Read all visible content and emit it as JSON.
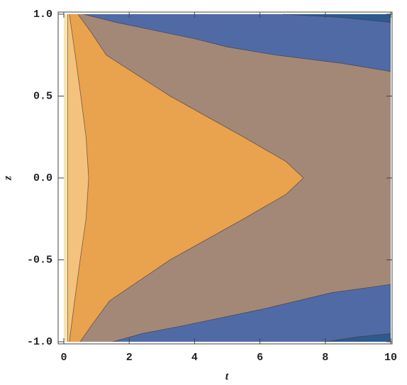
{
  "chart_data": {
    "type": "contour",
    "xlabel": "t",
    "ylabel": "z",
    "xlim": [
      0,
      10
    ],
    "ylim": [
      -1,
      1
    ],
    "xticks": [
      0,
      2,
      4,
      6,
      8,
      10
    ],
    "yticks": [
      {
        "value": -1,
        "label": "-1.0"
      },
      {
        "value": -0.5,
        "label": "-0.5"
      },
      {
        "value": 0,
        "label": "0.0"
      },
      0.5,
      {
        "value": 1,
        "label": "1.0"
      }
    ],
    "base_color": "#f8e3b2",
    "contours": [
      {
        "color": "#f3c27c",
        "x": [
          0.12,
          0.12
        ],
        "y": [
          1,
          -1
        ]
      },
      {
        "color": "#e9a24d",
        "x": [
          0.17,
          0.35,
          0.52,
          0.68,
          0.76,
          0.68,
          0.5,
          0.33,
          0.17
        ],
        "y": [
          1,
          0.75,
          0.5,
          0.25,
          0,
          -0.25,
          -0.5,
          -0.75,
          -1
        ]
      },
      {
        "color": "#a38878",
        "x": [
          0.43,
          0.8,
          1.3,
          3.25,
          5.5,
          6.8,
          7.33,
          6.8,
          5.5,
          3.25,
          1.4,
          0.85,
          0.5
        ],
        "y": [
          1,
          0.9,
          0.75,
          0.5,
          0.25,
          0.1,
          0,
          -0.1,
          -0.25,
          -0.5,
          -0.75,
          -0.9,
          -1
        ]
      },
      {
        "color": "#506aa6",
        "x": [
          0.6,
          1.6,
          2.8,
          4.0,
          5.0,
          6.5,
          8.5,
          10
        ],
        "y": [
          1,
          0.95,
          0.9,
          0.85,
          0.8,
          0.75,
          0.7,
          0.65
        ]
      },
      {
        "color": "#506aa6",
        "x": [
          1.5,
          2.4,
          3.7,
          6.1,
          8.2,
          10
        ],
        "y": [
          -1,
          -0.95,
          -0.9,
          -0.8,
          -0.7,
          -0.65
        ]
      },
      {
        "color": "#2e5a8e",
        "x": [
          6.7,
          8.5,
          10
        ],
        "y": [
          1,
          0.98,
          0.95
        ]
      },
      {
        "color": "#2e5a8e",
        "x": [
          8,
          9,
          10
        ],
        "y": [
          -1,
          -0.97,
          -0.95
        ]
      }
    ]
  }
}
